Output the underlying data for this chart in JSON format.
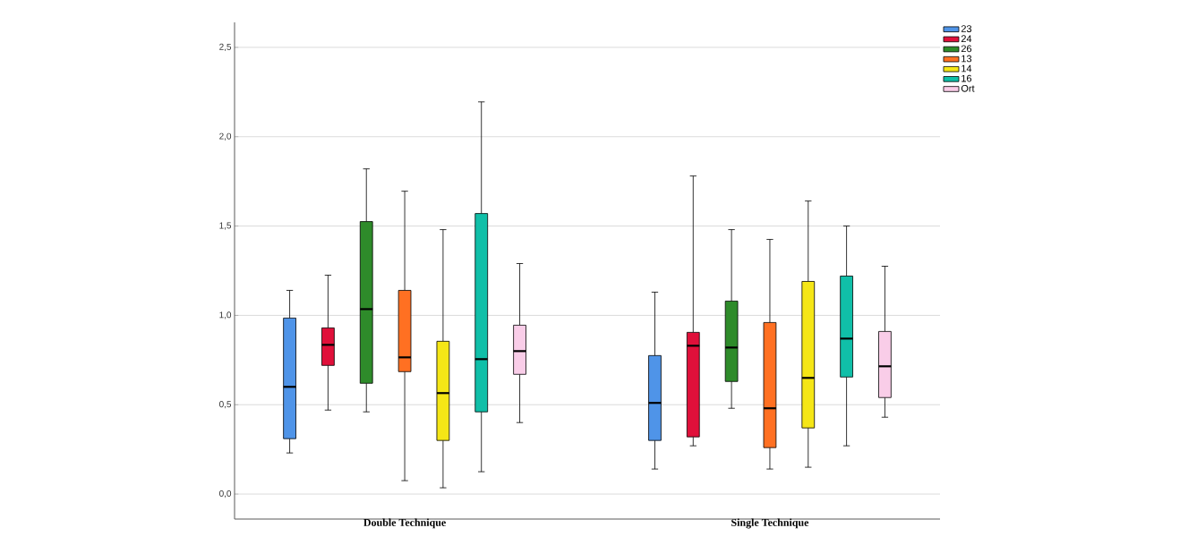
{
  "chart_data": {
    "type": "box",
    "categories": [
      "Double Technique",
      "Single Technique"
    ],
    "ylim": [
      -0.14,
      2.64
    ],
    "yticks": [
      {
        "value": 0,
        "label": "0,0"
      },
      {
        "value": 0.5,
        "label": "0,5"
      },
      {
        "value": 1,
        "label": "1,0"
      },
      {
        "value": 1.5,
        "label": "1,5"
      },
      {
        "value": 2,
        "label": "2,0"
      },
      {
        "value": 2.5,
        "label": "2,5"
      }
    ],
    "grid": "y",
    "legend": "top right",
    "series": [
      {
        "name": "23",
        "color": "#4f94e8",
        "boxes": [
          {
            "low": 0.23,
            "q1": 0.31,
            "median": 0.6,
            "q3": 0.985,
            "high": 1.14
          },
          {
            "low": 0.14,
            "q1": 0.3,
            "median": 0.51,
            "q3": 0.775,
            "high": 1.13
          }
        ]
      },
      {
        "name": "24",
        "color": "#e0103a",
        "boxes": [
          {
            "low": 0.47,
            "q1": 0.72,
            "median": 0.835,
            "q3": 0.93,
            "high": 1.225
          },
          {
            "low": 0.27,
            "q1": 0.32,
            "median": 0.83,
            "q3": 0.905,
            "high": 1.78
          }
        ]
      },
      {
        "name": "26",
        "color": "#2e8b2a",
        "boxes": [
          {
            "low": 0.46,
            "q1": 0.62,
            "median": 1.035,
            "q3": 1.525,
            "high": 1.82
          },
          {
            "low": 0.48,
            "q1": 0.63,
            "median": 0.82,
            "q3": 1.08,
            "high": 1.48
          }
        ]
      },
      {
        "name": "13",
        "color": "#ff7022",
        "boxes": [
          {
            "low": 0.075,
            "q1": 0.685,
            "median": 0.765,
            "q3": 1.14,
            "high": 1.695
          },
          {
            "low": 0.14,
            "q1": 0.26,
            "median": 0.48,
            "q3": 0.96,
            "high": 1.425
          }
        ]
      },
      {
        "name": "14",
        "color": "#f5e616",
        "boxes": [
          {
            "low": 0.035,
            "q1": 0.3,
            "median": 0.565,
            "q3": 0.855,
            "high": 1.48
          },
          {
            "low": 0.15,
            "q1": 0.37,
            "median": 0.65,
            "q3": 1.19,
            "high": 1.64
          }
        ]
      },
      {
        "name": "16",
        "color": "#10bfa8",
        "boxes": [
          {
            "low": 0.125,
            "q1": 0.46,
            "median": 0.755,
            "q3": 1.57,
            "high": 2.195
          },
          {
            "low": 0.27,
            "q1": 0.655,
            "median": 0.87,
            "q3": 1.22,
            "high": 1.5
          }
        ]
      },
      {
        "name": "Ort",
        "color": "#f9cde8",
        "boxes": [
          {
            "low": 0.4,
            "q1": 0.67,
            "median": 0.8,
            "q3": 0.945,
            "high": 1.29
          },
          {
            "low": 0.43,
            "q1": 0.54,
            "median": 0.715,
            "q3": 0.91,
            "high": 1.275
          }
        ]
      }
    ]
  }
}
